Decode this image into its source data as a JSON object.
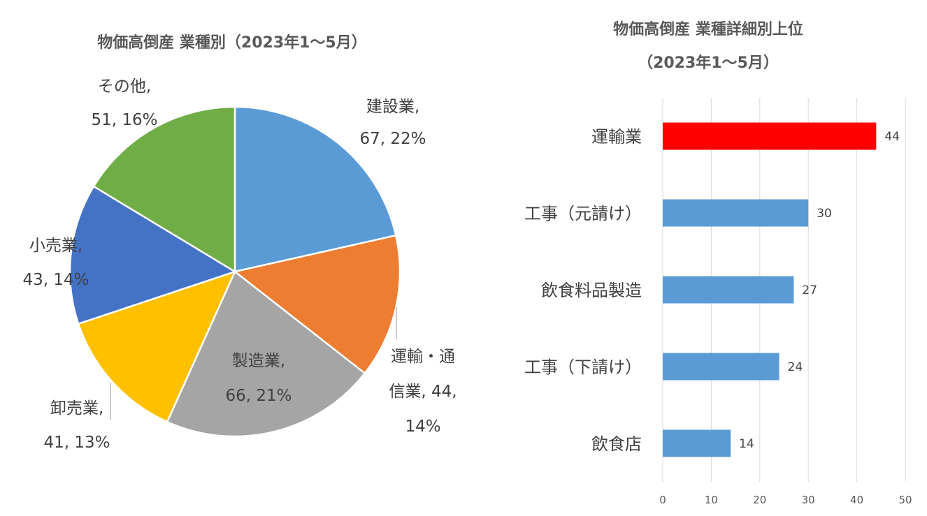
{
  "chart_data": [
    {
      "type": "pie",
      "title": "物価高倒産 業種別（2023年1～5月）",
      "slices": [
        {
          "label_lines": [
            "建設業,",
            "67, 22%"
          ],
          "value": 67,
          "percent": 22,
          "color": "#5B9BD5"
        },
        {
          "label_lines": [
            "運輸・通",
            "信業, 44,",
            "14%"
          ],
          "value": 44,
          "percent": 14,
          "color": "#ED7D31"
        },
        {
          "label_lines": [
            "製造業,",
            "66, 21%"
          ],
          "value": 66,
          "percent": 21,
          "color": "#A5A5A5"
        },
        {
          "label_lines": [
            "卸売業,",
            "41, 13%"
          ],
          "value": 41,
          "percent": 13,
          "color": "#FFC000"
        },
        {
          "label_lines": [
            "小売業,",
            "43, 14%"
          ],
          "value": 43,
          "percent": 14,
          "color": "#4472C4"
        },
        {
          "label_lines": [
            "その他,",
            "51, 16%"
          ],
          "value": 51,
          "percent": 16,
          "color": "#70AD47"
        }
      ]
    },
    {
      "type": "bar",
      "orientation": "horizontal",
      "title_lines": [
        "物価高倒産 業種詳細別上位",
        "（2023年1～5月）"
      ],
      "categories": [
        "運輸業",
        "工事（元請け）",
        "飲食料品製造",
        "工事（下請け）",
        "飲食店"
      ],
      "values": [
        44,
        30,
        27,
        24,
        14
      ],
      "colors": [
        "#FF0000",
        "#5B9BD5",
        "#5B9BD5",
        "#5B9BD5",
        "#5B9BD5"
      ],
      "xlim": [
        0,
        50
      ],
      "xticks": [
        0,
        10,
        20,
        30,
        40,
        50
      ],
      "grid": true
    }
  ]
}
